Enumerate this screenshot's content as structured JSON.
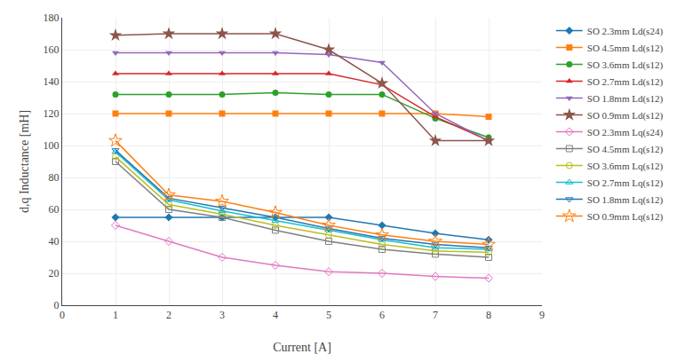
{
  "chart_data": {
    "type": "line",
    "x": [
      1,
      2,
      3,
      4,
      5,
      6,
      7,
      8
    ],
    "series": [
      {
        "name": "SO 2.3mm Ld(s24)",
        "marker": "diamond",
        "line_style": "solid",
        "values": [
          55,
          55,
          55,
          55,
          55,
          50,
          45,
          41
        ]
      },
      {
        "name": "SO 4.5mm Ld(s12)",
        "marker": "square",
        "line_style": "solid",
        "values": [
          120,
          120,
          120,
          120,
          120,
          120,
          120,
          118
        ]
      },
      {
        "name": "SO 3.6mm Ld(s12)",
        "marker": "circle",
        "line_style": "solid",
        "values": [
          132,
          132,
          132,
          133,
          132,
          132,
          117,
          105
        ]
      },
      {
        "name": "SO 2.7mm Ld(s12)",
        "marker": "triangle-up",
        "line_style": "solid",
        "values": [
          145,
          145,
          145,
          145,
          145,
          138,
          118,
          103
        ]
      },
      {
        "name": "SO 1.8mm Ld(s12)",
        "marker": "triangle-down",
        "line_style": "solid",
        "values": [
          158,
          158,
          158,
          158,
          157,
          152,
          120,
          103
        ]
      },
      {
        "name": "SO 0.9mm Ld(s12)",
        "marker": "star",
        "line_style": "solid",
        "values": [
          169,
          170,
          170,
          170,
          160,
          139,
          103,
          103
        ]
      },
      {
        "name": "SO 2.3mm Lq(s24)",
        "marker": "diamond-open",
        "line_style": "solid",
        "values": [
          50,
          40,
          30,
          25,
          21,
          20,
          18,
          17
        ]
      },
      {
        "name": "SO 4.5mm Lq(s12)",
        "marker": "square-open",
        "line_style": "solid",
        "values": [
          90,
          60,
          55,
          47,
          40,
          35,
          32,
          30
        ]
      },
      {
        "name": "SO 3.6mm Lq(s12)",
        "marker": "circle-open",
        "line_style": "solid",
        "values": [
          93,
          63,
          57,
          50,
          44,
          38,
          34,
          33
        ]
      },
      {
        "name": "SO 2.7mm Lq(s12)",
        "marker": "triangle-up-open",
        "line_style": "solid",
        "values": [
          96,
          66,
          59,
          53,
          47,
          41,
          36,
          35
        ]
      },
      {
        "name": "SO 1.8mm Lq(s12)",
        "marker": "triangle-down-open",
        "line_style": "solid",
        "values": [
          97,
          67,
          61,
          55,
          48,
          42,
          38,
          36
        ]
      },
      {
        "name": "SO 0.9mm Lq(s12)",
        "marker": "star-open",
        "line_style": "solid",
        "values": [
          103,
          69,
          65,
          58,
          50,
          44,
          40,
          38
        ]
      }
    ],
    "xlabel": "Current [A]",
    "ylabel": "d,q Inductance [mH]",
    "xlim": [
      0,
      9
    ],
    "ylim": [
      0,
      180
    ],
    "xticks": [
      0,
      1,
      2,
      3,
      4,
      5,
      6,
      7,
      8,
      9
    ],
    "yticks": [
      0,
      20,
      40,
      60,
      80,
      100,
      120,
      140,
      160,
      180
    ],
    "grid": true,
    "legend": "upper right"
  }
}
